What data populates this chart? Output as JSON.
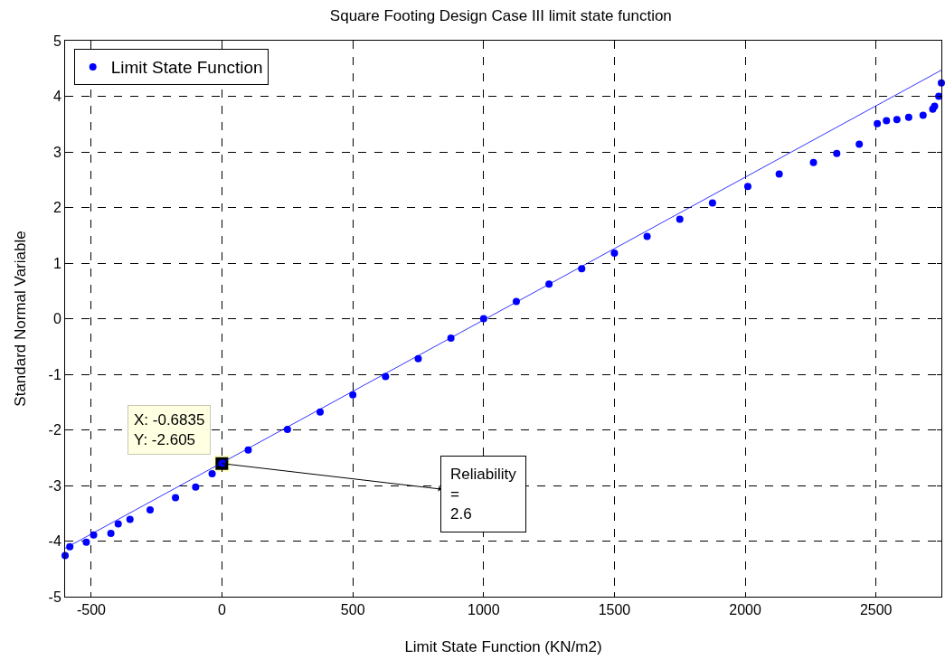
{
  "chart_data": {
    "type": "scatter",
    "title": "Square Footing Design Case III limit state function",
    "xlabel": "Limit State Function (KN/m2)",
    "ylabel": "Standard Normal Variable",
    "series": [
      {
        "name": "Limit State Function",
        "color": "#0000ff",
        "marker": "circle",
        "x": [
          -600,
          -582,
          -519,
          -491,
          -425,
          -397,
          -352,
          -275,
          -178,
          -101,
          -38,
          0,
          100,
          250,
          375,
          500,
          625,
          750,
          875,
          1000,
          1125,
          1250,
          1375,
          1500,
          1625,
          1750,
          1875,
          2010,
          2130,
          2261,
          2350,
          2436,
          2505,
          2540,
          2580,
          2625,
          2680,
          2717,
          2724,
          2740,
          2750
        ],
        "values": [
          -4.26,
          -4.1,
          -4.02,
          -3.89,
          -3.86,
          -3.69,
          -3.61,
          -3.44,
          -3.22,
          -3.03,
          -2.79,
          -2.6,
          -2.36,
          -1.99,
          -1.68,
          -1.37,
          -1.04,
          -0.72,
          -0.35,
          0,
          0.31,
          0.62,
          0.9,
          1.18,
          1.48,
          1.79,
          2.08,
          2.38,
          2.6,
          2.81,
          2.97,
          3.14,
          3.51,
          3.56,
          3.58,
          3.62,
          3.66,
          3.77,
          3.82,
          4.0,
          4.24
        ]
      },
      {
        "type": "line",
        "color": "#0000ff",
        "marker": "none",
        "x": [
          -600,
          2750
        ],
        "values": [
          -4.13,
          4.47
        ]
      }
    ],
    "xlim": [
      -600,
      2750
    ],
    "xticks": [
      -500,
      0,
      500,
      1000,
      1500,
      2000,
      2500
    ],
    "ylim": [
      -5,
      5
    ],
    "yticks": [
      -5,
      -4,
      -3,
      -2,
      -1,
      0,
      1,
      2,
      3,
      4,
      5
    ],
    "grid": true,
    "legend": "top left",
    "line_style": "solid",
    "annotations": [
      {
        "text": "X: -0.6835\nY: -2.605",
        "x": -0.6835,
        "y": -2.605
      },
      {
        "text": "Reliability\n=\n2.6",
        "x": -0.6835,
        "y": -2.605
      }
    ]
  }
}
